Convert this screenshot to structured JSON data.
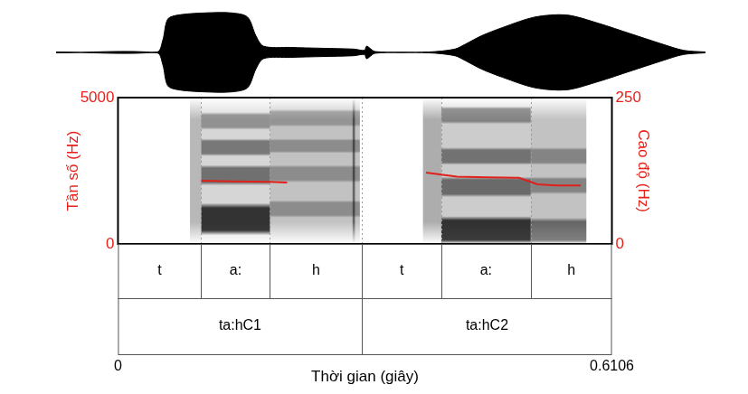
{
  "chart_data": [
    {
      "type": "area",
      "color": "#000000",
      "tick_labels": false,
      "xlim": [
        0,
        0.6106
      ],
      "ylim": [
        -1,
        1
      ],
      "x": [
        0,
        0.095,
        0.1004,
        0.105,
        0.115,
        0.14,
        0.165,
        0.18,
        0.1879,
        0.195,
        0.22,
        0.25,
        0.28,
        0.29,
        0.292,
        0.3,
        0.35,
        0.375,
        0.385,
        0.4,
        0.42,
        0.45,
        0.48,
        0.51,
        0.54,
        0.57,
        0.59,
        0.6106
      ],
      "values": [
        0.01,
        0.01,
        0.3,
        0.8,
        0.9,
        0.95,
        0.95,
        0.85,
        0.4,
        0.15,
        0.12,
        0.1,
        0.08,
        0.05,
        0.15,
        0.02,
        0.01,
        0.08,
        0.2,
        0.4,
        0.6,
        0.85,
        0.9,
        0.7,
        0.45,
        0.2,
        0.05,
        0.01
      ]
    },
    {
      "type": "line",
      "xlabel": "Thời gian (giây)",
      "ylabel": "Tần số (Hz)",
      "y2label": "Cao độ (Hz)",
      "xlim": [
        0,
        0.6106
      ],
      "xticks": [
        0,
        0.6106
      ],
      "ylim": [
        0,
        5000
      ],
      "yticks": [
        0,
        5000
      ],
      "y2lim": [
        0,
        250
      ],
      "y2ticks": [
        0,
        250
      ],
      "series": [
        {
          "axis": "y2",
          "color": "#e0201b",
          "x": [
            0.1029,
            0.1428,
            0.1879,
            0.2091
          ],
          "values": [
            108,
            107,
            106,
            105
          ]
        },
        {
          "axis": "y2",
          "color": "#e0201b",
          "x": [
            0.3808,
            0.4191,
            0.4574,
            0.4957,
            0.5186,
            0.5424,
            0.5721
          ],
          "values": [
            122,
            115,
            114,
            113,
            102,
            100,
            100
          ]
        }
      ],
      "spectrogram_bands": [
        {
          "t": [
            0.089,
            0.1029
          ],
          "f": [
            0,
            5000
          ],
          "level": 0.35
        },
        {
          "t": [
            0.1029,
            0.1879
          ],
          "f": [
            0,
            5000
          ],
          "level": 0.2
        },
        {
          "t": [
            0.1029,
            0.1879
          ],
          "f": [
            300,
            1400
          ],
          "level": 0.95
        },
        {
          "t": [
            0.1029,
            0.1879
          ],
          "f": [
            2000,
            2700
          ],
          "level": 0.6
        },
        {
          "t": [
            0.1029,
            0.1879
          ],
          "f": [
            3000,
            3600
          ],
          "level": 0.55
        },
        {
          "t": [
            0.1029,
            0.1879
          ],
          "f": [
            3900,
            4500
          ],
          "level": 0.4
        },
        {
          "t": [
            0.1879,
            0.299
          ],
          "f": [
            0,
            5000
          ],
          "level": 0.3
        },
        {
          "t": [
            0.1879,
            0.299
          ],
          "f": [
            900,
            1500
          ],
          "level": 0.35
        },
        {
          "t": [
            0.1879,
            0.299
          ],
          "f": [
            2100,
            2700
          ],
          "level": 0.35
        },
        {
          "t": [
            0.1879,
            0.299
          ],
          "f": [
            3100,
            3600
          ],
          "level": 0.35
        },
        {
          "t": [
            0.1879,
            0.299
          ],
          "f": [
            4000,
            4600
          ],
          "level": 0.3
        },
        {
          "t": [
            0.29,
            0.293
          ],
          "f": [
            0,
            5000
          ],
          "level": 0.6
        },
        {
          "t": [
            0.377,
            0.3997
          ],
          "f": [
            0,
            5000
          ],
          "level": 0.4
        },
        {
          "t": [
            0.3997,
            0.5102
          ],
          "f": [
            0,
            5000
          ],
          "level": 0.25
        },
        {
          "t": [
            0.3997,
            0.5102
          ],
          "f": [
            0,
            950
          ],
          "level": 0.95
        },
        {
          "t": [
            0.3997,
            0.5102
          ],
          "f": [
            1600,
            2300
          ],
          "level": 0.6
        },
        {
          "t": [
            0.3997,
            0.5102
          ],
          "f": [
            2700,
            3300
          ],
          "level": 0.55
        },
        {
          "t": [
            0.3997,
            0.5102
          ],
          "f": [
            4100,
            4700
          ],
          "level": 0.45
        },
        {
          "t": [
            0.5102,
            0.579
          ],
          "f": [
            0,
            5000
          ],
          "level": 0.3
        },
        {
          "t": [
            0.5102,
            0.579
          ],
          "f": [
            0,
            900
          ],
          "level": 0.6
        },
        {
          "t": [
            0.5102,
            0.579
          ],
          "f": [
            1700,
            2300
          ],
          "level": 0.4
        },
        {
          "t": [
            0.5102,
            0.579
          ],
          "f": [
            2700,
            3300
          ],
          "level": 0.4
        }
      ]
    }
  ],
  "tiers": [
    [
      {
        "label": "t",
        "start": 0,
        "end": 0.1029
      },
      {
        "label": "a:",
        "start": 0.1029,
        "end": 0.1879
      },
      {
        "label": "h",
        "start": 0.1879,
        "end": 0.3019
      },
      {
        "label": "t",
        "start": 0.3019,
        "end": 0.3997
      },
      {
        "label": "a:",
        "start": 0.3997,
        "end": 0.5102
      },
      {
        "label": "h",
        "start": 0.5102,
        "end": 0.6106
      }
    ],
    [
      {
        "label": "ta:hC1",
        "start": 0,
        "end": 0.3019
      },
      {
        "label": "ta:hC2",
        "start": 0.3019,
        "end": 0.6106
      }
    ]
  ]
}
